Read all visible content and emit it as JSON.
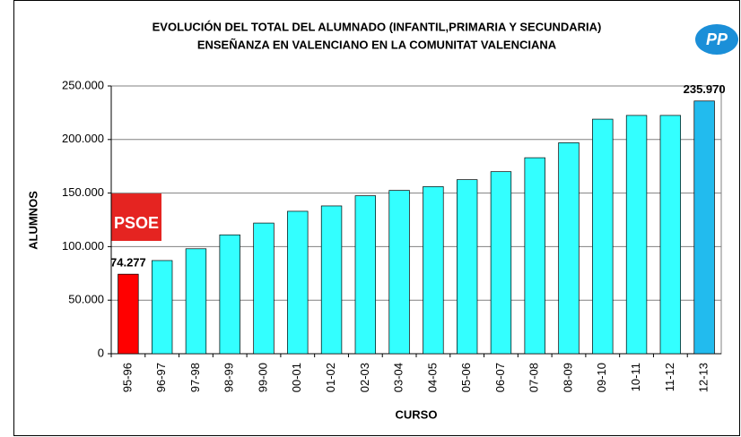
{
  "chart_data": {
    "type": "bar",
    "title": "EVOLUCIÓN DEL TOTAL DEL ALUMNADO (INFANTIL,PRIMARIA Y SECUNDARIA)",
    "subtitle": "ENSEÑANZA EN VALENCIANO EN LA COMUNITAT VALENCIANA",
    "x_label": "CURSO",
    "y_label": "ALUMNOS",
    "annotations": [
      "PSOE",
      "PP"
    ],
    "categories": [
      "95-96",
      "96-97",
      "97-98",
      "98-99",
      "99-00",
      "00-01",
      "01-02",
      "02-03",
      "03-04",
      "04-05",
      "05-06",
      "06-07",
      "07-08",
      "08-09",
      "09-10",
      "10-11",
      "11-12",
      "12-13"
    ],
    "values": [
      74277,
      87000,
      98000,
      111000,
      122000,
      133000,
      138000,
      147500,
      152500,
      156000,
      162500,
      170000,
      183000,
      197000,
      219000,
      222500,
      222500,
      235970
    ],
    "value_labels": [
      "74.277",
      null,
      null,
      null,
      null,
      null,
      null,
      null,
      null,
      null,
      null,
      null,
      null,
      null,
      null,
      null,
      null,
      "235.970"
    ],
    "colors": [
      "#ff0000",
      "#33ffff",
      "#33ffff",
      "#33ffff",
      "#33ffff",
      "#33ffff",
      "#33ffff",
      "#33ffff",
      "#33ffff",
      "#33ffff",
      "#33ffff",
      "#33ffff",
      "#33ffff",
      "#33ffff",
      "#33ffff",
      "#33ffff",
      "#33ffff",
      "#22bbee"
    ],
    "ylim": [
      0,
      250000
    ],
    "yticks": [
      0,
      {
        "value": 50000,
        "label": "50.000"
      },
      {
        "value": 100000,
        "label": "100.000"
      },
      {
        "value": 150000,
        "label": "150.000"
      },
      {
        "value": 200000,
        "label": "200.000"
      },
      {
        "value": 250000,
        "label": "250.000"
      }
    ],
    "grid": true
  }
}
